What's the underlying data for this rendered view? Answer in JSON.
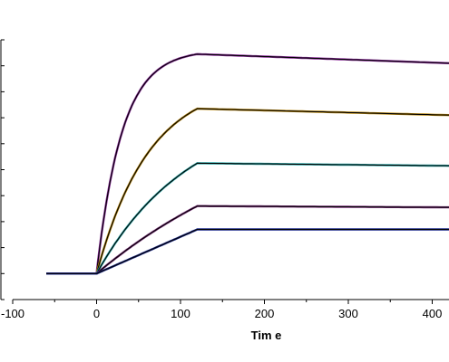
{
  "chart_data": {
    "type": "line",
    "title": "",
    "xlabel": "Tim e",
    "ylabel": "",
    "xlim": [
      -100,
      420
    ],
    "ylim": [
      0,
      10
    ],
    "x_ticks": [
      -100,
      0,
      100,
      200,
      300,
      400
    ],
    "x_tick_labels": [
      "-100",
      "0",
      "100",
      "200",
      "300",
      "400"
    ],
    "y_ticks": [
      0,
      1,
      2,
      3,
      4,
      5,
      6,
      7,
      8,
      9,
      10
    ],
    "grid": false,
    "legend": "none",
    "association_end_time": 120,
    "baseline_start_time": -60,
    "end_time": 420,
    "baseline": 1.0,
    "series": [
      {
        "plateau": 9.45,
        "end_value": 9.1,
        "rate": 0.033,
        "color": "#8b2c9b"
      },
      {
        "plateau": 7.35,
        "end_value": 7.1,
        "rate": 0.016,
        "color": "#b8860b"
      },
      {
        "plateau": 5.25,
        "end_value": 5.15,
        "rate": 0.009,
        "color": "#2aa7a7"
      },
      {
        "plateau": 3.6,
        "end_value": 3.55,
        "rate": 0.004,
        "color": "#7a2f7a"
      },
      {
        "plateau": 2.7,
        "end_value": 2.7,
        "rate": 0.0005,
        "color": "#1c2a8c"
      }
    ]
  }
}
